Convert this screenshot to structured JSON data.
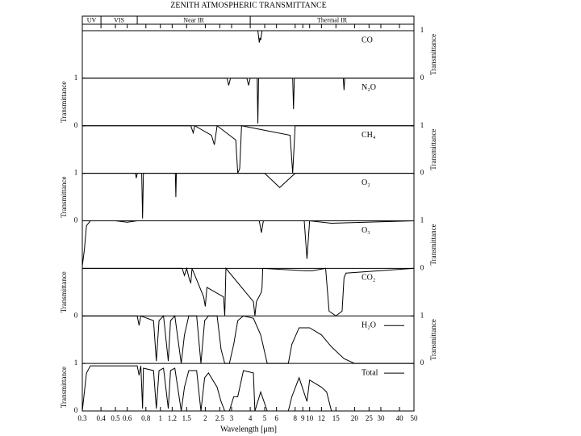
{
  "chart_data": {
    "type": "line",
    "title": "ZENITH ATMOSPHERIC TRANSMITTANCE",
    "xlabel": "Wavelength [μm]",
    "xscale": "log",
    "xlim": [
      0.3,
      50
    ],
    "xticks": [
      0.3,
      0.4,
      0.5,
      0.6,
      0.8,
      1,
      1.2,
      1.5,
      2,
      2.5,
      3,
      4,
      5,
      6,
      8,
      9,
      10,
      12,
      15,
      20,
      25,
      30,
      40,
      50
    ],
    "bands": [
      {
        "name": "UV",
        "from": 0.3,
        "to": 0.4
      },
      {
        "name": "VIS",
        "from": 0.4,
        "to": 0.7
      },
      {
        "name": "Near IR",
        "from": 0.7,
        "to": 4
      },
      {
        "name": "Thermal IR",
        "from": 4,
        "to": 50
      }
    ],
    "color": "#000000",
    "panels": [
      {
        "name": "CO",
        "axis_side": "right",
        "ylabel": "Transmittance",
        "ylim": [
          0,
          1
        ],
        "yticks": [
          0,
          1
        ],
        "x": [
          0.3,
          4.5,
          4.6,
          4.65,
          4.7,
          4.8,
          50
        ],
        "values": [
          1,
          1,
          0.75,
          0.85,
          0.8,
          1,
          1
        ]
      },
      {
        "name": "N₂O",
        "axis_side": "left",
        "ylabel": "Transmittance",
        "ylim": [
          0,
          1
        ],
        "yticks": [
          0,
          1
        ],
        "x": [
          0.3,
          2.8,
          2.87,
          2.95,
          3.8,
          3.9,
          4.0,
          4.45,
          4.5,
          4.55,
          7.7,
          7.8,
          7.9,
          16.8,
          17,
          17.2,
          50
        ],
        "values": [
          1,
          1,
          0.85,
          1,
          1,
          0.85,
          1,
          1,
          0.05,
          1,
          1,
          0.35,
          1,
          1,
          0.75,
          1,
          1
        ]
      },
      {
        "name": "CH₄",
        "axis_side": "right",
        "ylabel": "Transmittance",
        "ylim": [
          0,
          1
        ],
        "yticks": [
          0,
          1
        ],
        "x": [
          0.3,
          1.6,
          1.66,
          1.7,
          2.2,
          2.3,
          2.4,
          3.2,
          3.3,
          3.4,
          3.5,
          7.4,
          7.7,
          8.0,
          50
        ],
        "values": [
          1,
          1,
          0.85,
          1,
          0.8,
          0.6,
          1,
          0.7,
          0,
          0.1,
          1,
          0.8,
          0,
          1,
          1
        ]
      },
      {
        "name": "O₂",
        "axis_side": "left",
        "ylabel": "Transmittance",
        "ylim": [
          0,
          1
        ],
        "yticks": [
          0,
          1
        ],
        "x": [
          0.3,
          0.68,
          0.69,
          0.7,
          0.75,
          0.76,
          0.77,
          1.26,
          1.27,
          1.28,
          5,
          6.3,
          8,
          50
        ],
        "values": [
          1,
          1,
          0.9,
          1,
          1,
          0.05,
          1,
          1,
          0.5,
          1,
          1,
          0.7,
          1,
          1
        ]
      },
      {
        "name": "O₃",
        "axis_side": "right",
        "ylabel": "Transmittance",
        "ylim": [
          0,
          1
        ],
        "yticks": [
          0,
          1
        ],
        "x": [
          0.3,
          0.31,
          0.32,
          0.34,
          0.5,
          0.6,
          0.7,
          4.6,
          4.75,
          4.9,
          9.2,
          9.6,
          10,
          14,
          50
        ],
        "values": [
          0.05,
          0.4,
          0.9,
          1,
          1,
          0.97,
          1,
          1,
          0.75,
          1,
          1,
          0.2,
          1,
          0.95,
          1
        ]
      },
      {
        "name": "CO₂",
        "axis_side": "left",
        "ylabel": "Transmittance",
        "ylim": [
          0,
          1
        ],
        "yticks": [
          0
        ],
        "x": [
          0.3,
          1.4,
          1.45,
          1.5,
          1.57,
          1.6,
          1.63,
          1.95,
          2.0,
          2.05,
          2.65,
          2.7,
          2.75,
          4.2,
          4.3,
          4.4,
          4.75,
          4.8,
          4.85,
          9.4,
          10.4,
          12.8,
          13.5,
          15,
          16.5,
          17,
          17.5,
          50
        ],
        "values": [
          1,
          1,
          0.85,
          1,
          0.75,
          0.7,
          1,
          0.4,
          0.2,
          0.6,
          0.4,
          0,
          1,
          0.3,
          0,
          0.3,
          0.5,
          0.6,
          1,
          0.95,
          0.95,
          1,
          0.1,
          0,
          0.1,
          0.8,
          0.9,
          1
        ]
      },
      {
        "name": "H₂O",
        "axis_side": "right",
        "ylabel": "Transmittance",
        "ylim": [
          0,
          1
        ],
        "yticks": [
          0,
          1
        ],
        "legend_line": true,
        "x": [
          0.3,
          0.7,
          0.72,
          0.74,
          0.9,
          0.94,
          0.98,
          1.05,
          1.13,
          1.17,
          1.25,
          1.38,
          1.45,
          1.55,
          1.75,
          1.87,
          1.98,
          2.1,
          2.4,
          2.55,
          2.7,
          2.9,
          3.1,
          3.3,
          3.6,
          4.2,
          4.7,
          5.2,
          7.2,
          7.6,
          8.5,
          10,
          12,
          14,
          17,
          20,
          50
        ],
        "values": [
          1,
          1,
          0.8,
          1,
          0.9,
          0.05,
          0.9,
          1,
          0.05,
          0.9,
          1,
          0,
          0.6,
          1,
          1,
          0,
          0.9,
          1,
          1,
          0.3,
          0,
          0,
          0.4,
          0.9,
          1,
          0.95,
          0.6,
          0,
          0,
          0.4,
          0.75,
          0.75,
          0.6,
          0.35,
          0.1,
          0,
          0
        ]
      },
      {
        "name": "Total",
        "axis_side": "left",
        "ylabel": "Transmittance",
        "ylim": [
          0,
          1
        ],
        "yticks": [
          0,
          1
        ],
        "legend_line": true,
        "x": [
          0.3,
          0.32,
          0.34,
          0.7,
          0.72,
          0.74,
          0.76,
          0.77,
          0.9,
          0.94,
          0.98,
          1.05,
          1.13,
          1.17,
          1.25,
          1.38,
          1.45,
          1.55,
          1.75,
          1.87,
          1.98,
          2.1,
          2.4,
          2.55,
          2.7,
          2.9,
          3.1,
          3.3,
          3.6,
          4.2,
          4.3,
          4.7,
          5.2,
          7.2,
          7.6,
          8.5,
          9.6,
          10,
          12,
          13,
          14,
          50
        ],
        "values": [
          0,
          0.8,
          0.95,
          0.95,
          0.75,
          0.95,
          0.05,
          0.9,
          0.85,
          0.05,
          0.85,
          0.9,
          0.05,
          0.85,
          0.9,
          0,
          0.5,
          0.85,
          0.85,
          0,
          0.7,
          0.8,
          0.5,
          0.2,
          0,
          0,
          0.3,
          0.3,
          0.85,
          0.8,
          0,
          0.4,
          0,
          0,
          0.3,
          0.7,
          0.2,
          0.65,
          0.5,
          0.4,
          0,
          0
        ]
      }
    ]
  }
}
